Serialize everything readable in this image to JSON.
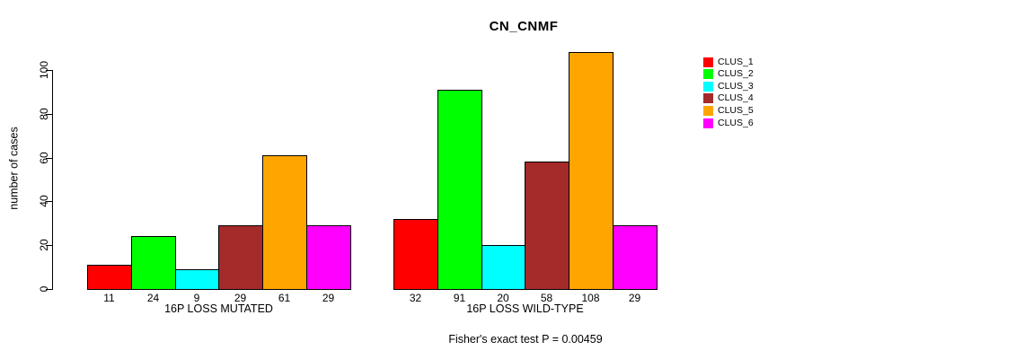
{
  "chart_data": {
    "type": "bar",
    "title": "CN_CNMF",
    "ylabel": "number of cases",
    "xlabel": "",
    "categories": [
      "16P LOSS MUTATED",
      "16P LOSS WILD-TYPE"
    ],
    "series": [
      {
        "name": "CLUS_1",
        "color": "#FF0000",
        "values": [
          11,
          32
        ]
      },
      {
        "name": "CLUS_2",
        "color": "#00FF00",
        "values": [
          24,
          91
        ]
      },
      {
        "name": "CLUS_3",
        "color": "#00FFFF",
        "values": [
          9,
          20
        ]
      },
      {
        "name": "CLUS_4",
        "color": "#A52A2A",
        "values": [
          29,
          58
        ]
      },
      {
        "name": "CLUS_5",
        "color": "#FFA500",
        "values": [
          61,
          108
        ]
      },
      {
        "name": "CLUS_6",
        "color": "#FF00FF",
        "values": [
          29,
          29
        ]
      }
    ],
    "yticks": [
      0,
      20,
      40,
      60,
      80,
      100
    ],
    "ylim": [
      0,
      110
    ],
    "grid": false,
    "bar_value_labels_shown": true,
    "legend_position": "right",
    "annotation": "Fisher's exact test P = 0.00459",
    "colors": {
      "background": "#FFFFFF",
      "axis": "#000000",
      "text": "#000000"
    }
  }
}
